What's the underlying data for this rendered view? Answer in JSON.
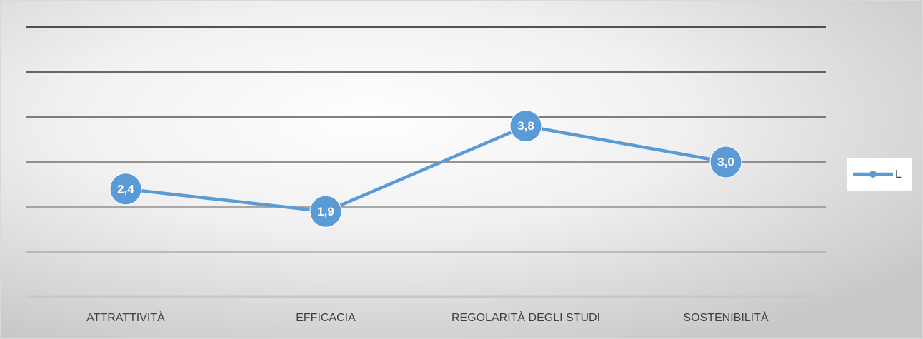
{
  "chart_data": {
    "type": "line",
    "categories": [
      "ATTRATTIVITÀ",
      "EFFICACIA",
      "REGOLARITÀ DEGLI STUDI",
      "SOSTENIBILITÀ"
    ],
    "series": [
      {
        "name": "L",
        "color": "#5b9bd5",
        "values": [
          2.4,
          1.9,
          3.8,
          3.0
        ],
        "value_labels": [
          "2,4",
          "1,9",
          "3,8",
          "3,0"
        ]
      }
    ],
    "ylim": [
      0,
      6
    ],
    "yticks": [
      0,
      1,
      2,
      3,
      4,
      5,
      6
    ],
    "grid": true,
    "legend": "right"
  }
}
